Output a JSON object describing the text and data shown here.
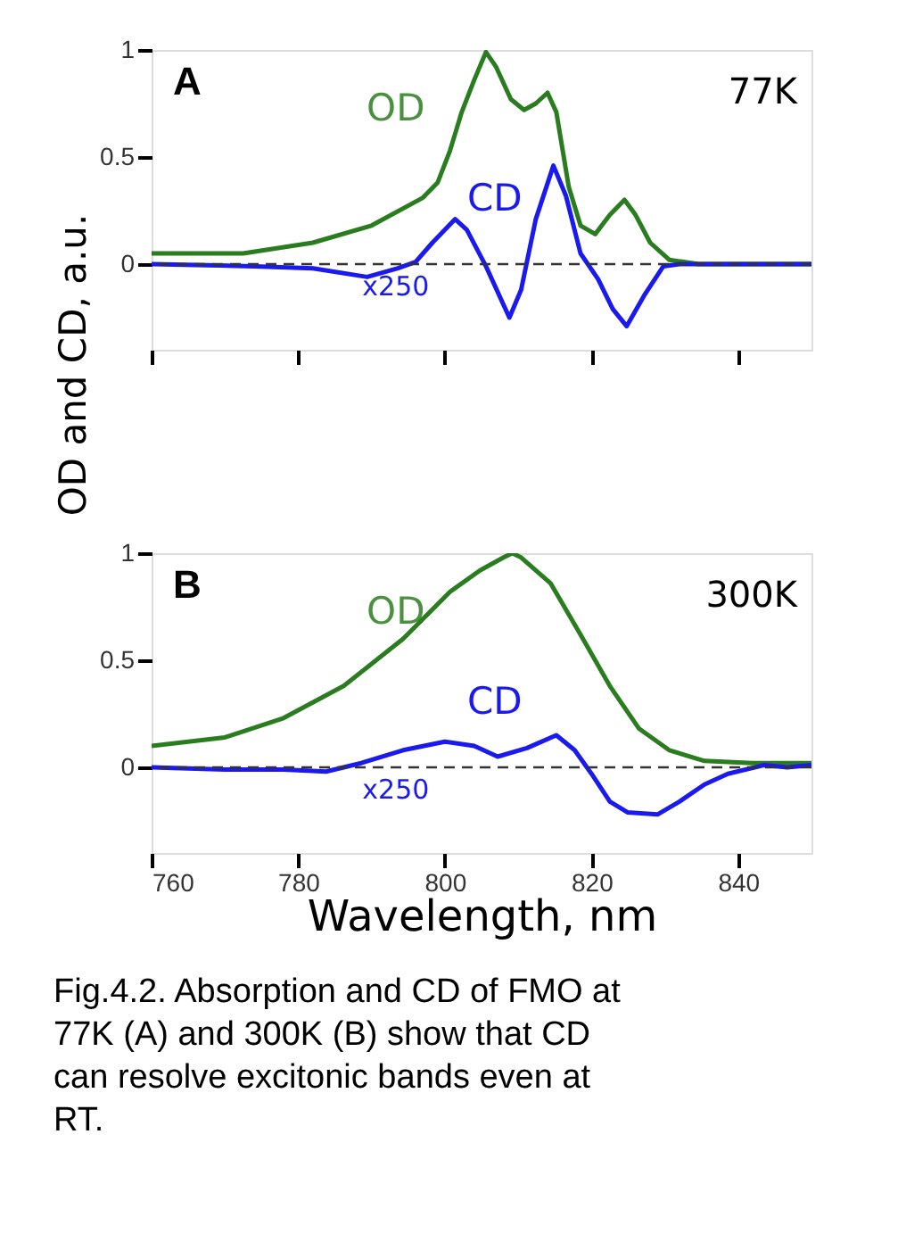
{
  "chart_data": [
    {
      "type": "line",
      "ylabel": "OD and CD, a.u.",
      "xlim": [
        760,
        850
      ],
      "ylim": [
        -0.4,
        1
      ],
      "xticks": [
        760,
        780,
        800,
        820,
        840
      ],
      "yticks": [
        0,
        0.5,
        1
      ],
      "tick_labels": "y",
      "grid": false,
      "line_style": "solid",
      "marker": "none",
      "ref_lines": [
        {
          "axis": "y",
          "value": 0,
          "color": "#333333",
          "line_style": "dashed"
        }
      ],
      "annotations": [
        "A",
        "77K",
        "OD",
        "CD",
        "x250"
      ],
      "series": [
        {
          "color": "#2a7d1e",
          "x": [
            760,
            772.5,
            782,
            790,
            797,
            799,
            800.7,
            802.3,
            804,
            805.6,
            807,
            809,
            810.8,
            812.4,
            814,
            815.2,
            816.9,
            818.5,
            820.5,
            822.5,
            824.5,
            826,
            828,
            830.6,
            834.6,
            850
          ],
          "values": [
            0.05,
            0.05,
            0.1,
            0.18,
            0.31,
            0.38,
            0.53,
            0.71,
            0.86,
            0.99,
            0.92,
            0.77,
            0.72,
            0.75,
            0.8,
            0.71,
            0.36,
            0.18,
            0.14,
            0.23,
            0.3,
            0.23,
            0.1,
            0.02,
            0,
            0
          ]
        },
        {
          "color": "#1a1aee",
          "x": [
            760,
            774,
            782,
            789.4,
            793.5,
            796,
            798.3,
            801.4,
            803,
            805.6,
            808.8,
            810.4,
            812.4,
            814.8,
            816.5,
            818.5,
            820.9,
            822.9,
            824.8,
            827.3,
            829.8,
            832,
            850
          ],
          "values": [
            0,
            -0.01,
            -0.02,
            -0.06,
            -0.02,
            0.01,
            0.1,
            0.21,
            0.16,
            -0.01,
            -0.25,
            -0.12,
            0.21,
            0.46,
            0.32,
            0.05,
            -0.07,
            -0.21,
            -0.29,
            -0.14,
            -0.01,
            0,
            0
          ]
        }
      ]
    },
    {
      "type": "line",
      "xlabel": "Wavelength, nm",
      "xlim": [
        760,
        850
      ],
      "ylim": [
        -0.4,
        1
      ],
      "xticks": [
        760,
        780,
        800,
        820,
        840
      ],
      "yticks": [
        0,
        0.5,
        1
      ],
      "grid": false,
      "line_style": "solid",
      "marker": "none",
      "ref_lines": [
        {
          "axis": "y",
          "value": 0,
          "color": "#333333",
          "line_style": "dashed"
        }
      ],
      "annotations": [
        "B",
        "300K",
        "OD",
        "CD",
        "x250",
        "Fig.4.2. Absorption and CD of FMO at 77K (A) and 300K (B) show that CD can resolve excitonic bands even at RT."
      ],
      "series": [
        {
          "color": "#2a7d1e",
          "x": [
            760,
            770,
            778,
            786.2,
            794.3,
            800.7,
            804.8,
            808,
            809.2,
            810.4,
            814.4,
            818.5,
            822.5,
            826.5,
            830.6,
            835.4,
            841.9,
            850
          ],
          "values": [
            0.1,
            0.14,
            0.23,
            0.38,
            0.6,
            0.82,
            0.92,
            0.98,
            1,
            0.98,
            0.86,
            0.62,
            0.38,
            0.18,
            0.08,
            0.03,
            0.02,
            0.02
          ]
        },
        {
          "color": "#1a1aee",
          "x": [
            760,
            770,
            778,
            783.8,
            788.6,
            794.3,
            800,
            804,
            807.2,
            811.2,
            815.2,
            817.7,
            820,
            822.5,
            824.9,
            829,
            832,
            835.4,
            838.6,
            843.5,
            846.7,
            850
          ],
          "values": [
            0,
            -0.01,
            -0.01,
            -0.02,
            0.02,
            0.08,
            0.12,
            0.1,
            0.05,
            0.09,
            0.15,
            0.08,
            -0.03,
            -0.16,
            -0.21,
            -0.22,
            -0.16,
            -0.08,
            -0.03,
            0.01,
            0,
            0.01
          ]
        }
      ]
    }
  ]
}
